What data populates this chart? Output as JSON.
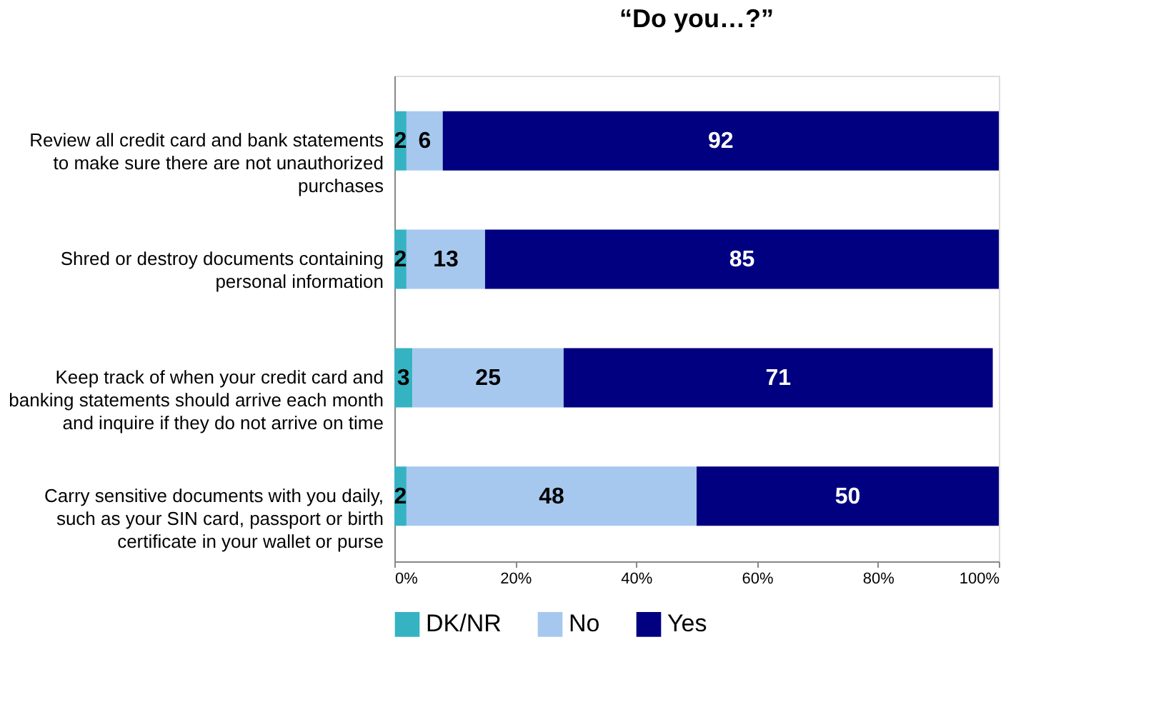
{
  "chart_data": {
    "type": "bar",
    "orientation": "horizontal",
    "stacked": true,
    "title": "“Do you…?”",
    "categories": [
      "Review all credit card and bank statements to make sure there are not unauthorized purchases",
      "Shred or destroy documents containing personal information",
      "Keep track of when your credit card and banking statements should arrive each month and inquire if they do not arrive on time",
      "Carry sensitive documents with you daily, such as your SIN card, passport or birth certificate in your wallet or purse"
    ],
    "series": [
      {
        "name": "DK/NR",
        "color": "#35b3c3",
        "values": [
          2,
          2,
          3,
          2
        ]
      },
      {
        "name": "No",
        "color": "#a6c8ee",
        "values": [
          6,
          13,
          25,
          48
        ]
      },
      {
        "name": "Yes",
        "color": "#000080",
        "values": [
          92,
          85,
          71,
          50
        ]
      }
    ],
    "data_labels": true,
    "xlim": [
      0,
      100
    ],
    "xticks": [
      {
        "value": 0,
        "label": "0%"
      },
      {
        "value": 20,
        "label": "20%"
      },
      {
        "value": 40,
        "label": "40%"
      },
      {
        "value": 60,
        "label": "60%"
      },
      {
        "value": 80,
        "label": "80%"
      },
      {
        "value": 100,
        "label": "100%"
      }
    ],
    "legend": "bottom",
    "grid": false
  }
}
